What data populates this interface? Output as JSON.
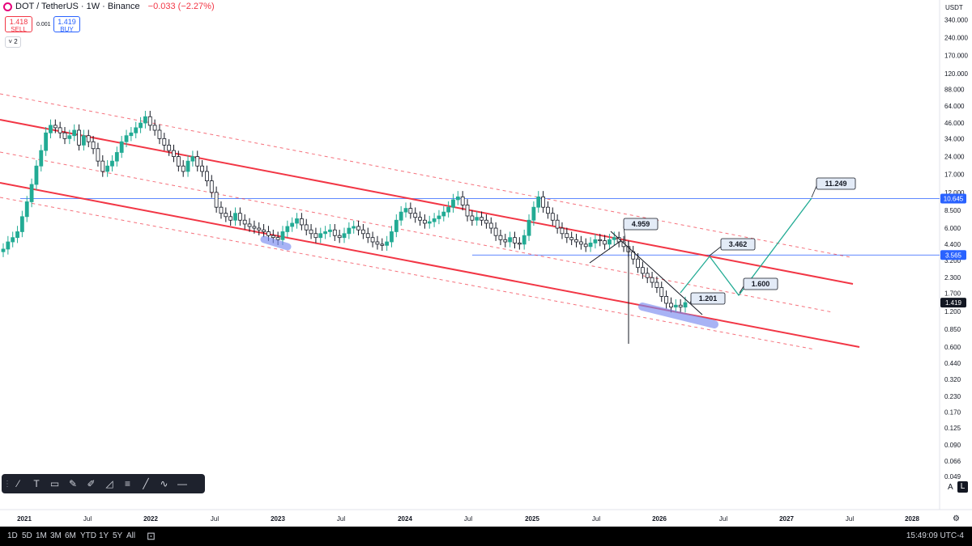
{
  "legend": {
    "symbol": "DOT / TetherUS · 1W · Binance",
    "change": "−0.033 (−2.27%)"
  },
  "trade": {
    "sell_price": "1.418",
    "sell_label": "SELL",
    "spread": "0.001",
    "buy_price": "1.419",
    "buy_label": "BUY"
  },
  "indicators_toggle": "2",
  "currency": "USDT",
  "colors": {
    "channel": "#f23645",
    "projection": "#22ab94",
    "hline": "#2962ff",
    "marker": "#7b8cf0",
    "up": "#22ab94",
    "down": "#131722"
  },
  "chart_data": {
    "type": "candlestick",
    "y_scale": "log",
    "y_ticks": [
      "340.000",
      "240.000",
      "170.000",
      "120.000",
      "88.000",
      "64.000",
      "46.000",
      "34.000",
      "24.000",
      "17.000",
      "12.000",
      "8.500",
      "6.000",
      "4.400",
      "3.200",
      "2.300",
      "1.700",
      "1.200",
      "0.850",
      "0.600",
      "0.440",
      "0.320",
      "0.230",
      "0.170",
      "0.125",
      "0.090",
      "0.066",
      "0.049"
    ],
    "x_ticks": [
      "2021",
      "Jul",
      "2022",
      "Jul",
      "2023",
      "Jul",
      "2024",
      "Jul",
      "2025",
      "Jul",
      "2026",
      "Jul",
      "2027",
      "Jul",
      "2028"
    ],
    "price_labels": [
      {
        "value": "10.645",
        "color": "#2962ff"
      },
      {
        "value": "3.565",
        "color": "#2962ff"
      },
      {
        "value": "1.419",
        "color": "#131722"
      }
    ],
    "callouts": [
      "4.959",
      "1.201",
      "3.462",
      "1.600",
      "11.249"
    ],
    "series": [
      {
        "values": [
          4.0,
          4.6,
          5.0,
          5.6,
          7.5,
          10,
          14,
          20,
          27,
          38,
          44,
          42,
          38,
          34,
          36,
          40,
          30,
          36,
          32,
          28,
          22,
          18,
          20,
          22,
          26,
          32,
          36,
          38,
          42,
          46,
          52,
          44,
          40,
          34,
          30,
          27,
          24,
          20,
          18,
          22,
          24,
          20,
          18,
          15,
          12,
          9,
          8,
          7.5,
          7,
          8,
          7,
          6.5,
          6.2,
          6,
          5.8,
          5.6,
          5.2,
          5,
          4.8,
          5.6,
          6.2,
          6.6,
          7.2,
          6.4,
          5.8,
          5.4,
          5,
          5.4,
          5.6,
          5.8,
          5.2,
          5,
          5.4,
          6,
          6.2,
          5.8,
          5.4,
          5,
          4.6,
          4.4,
          4.3,
          4.6,
          5.6,
          7,
          8.2,
          8.8,
          8,
          7.4,
          7,
          6.6,
          6.8,
          7.2,
          7.6,
          8.2,
          9,
          10.4,
          11,
          9.4,
          7.6,
          7,
          7.4,
          7,
          6.6,
          6,
          5.2,
          4.8,
          4.6,
          5,
          4.5,
          4.4,
          5.2,
          7,
          9,
          11,
          9,
          8,
          7,
          6,
          5.4,
          5,
          4.8,
          4.6,
          4.4,
          4.2,
          4.5,
          4.8,
          4.7,
          4.4,
          4.8,
          5,
          4.6,
          4.2,
          3.8,
          3.3,
          2.8,
          2.5,
          2.3,
          2.1,
          1.9,
          1.6,
          1.4,
          1.3,
          1.35,
          1.3,
          1.419
        ]
      }
    ]
  },
  "drawing_tools": [
    "trend-line",
    "text",
    "note",
    "brush",
    "highlighter",
    "shape",
    "fib",
    "line",
    "path",
    "h-line"
  ],
  "range_buttons": [
    "1D",
    "5D",
    "1M",
    "3M",
    "6M",
    "YTD",
    "1Y",
    "5Y",
    "All"
  ],
  "clock": "15:49:09 UTC-4",
  "scale_buttons": {
    "auto": "A",
    "log": "L"
  }
}
